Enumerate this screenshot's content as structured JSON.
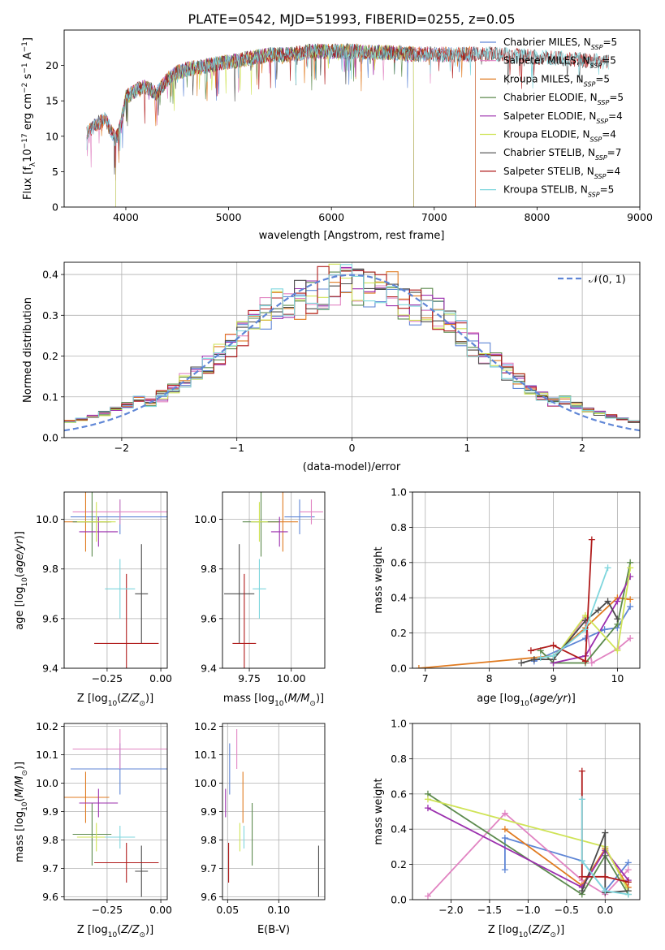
{
  "figure_title": "PLATE=0542, MJD=51993, FIBERID=0255, z=0.05",
  "colors": {
    "Chabrier MILES": "#5f86d6",
    "Salpeter MILES": "#e184c2",
    "Kroupa MILES": "#e07b21",
    "Chabrier ELODIE": "#5c8a4d",
    "Salpeter ELODIE": "#9b2fae",
    "Kroupa ELODIE": "#cfe356",
    "Chabrier STELIB": "#4a4a4a",
    "Salpeter STELIB": "#b01b1b",
    "Kroupa STELIB": "#7fd6dd"
  },
  "chart_data": [
    {
      "id": "spectrum",
      "type": "line",
      "xlabel": "wavelength [Angstrom, rest frame]",
      "ylabel": "Flux [f",
      "xlim": [
        3400,
        9000
      ],
      "ylim": [
        0,
        25
      ],
      "xticks": [
        "4000",
        "5000",
        "6000",
        "7000",
        "8000",
        "9000"
      ],
      "yticks": [
        "0",
        "5",
        "10",
        "15",
        "20"
      ],
      "grid": false,
      "legend_position": "upper right",
      "legend": [
        {
          "label": "Chabrier MILES, N",
          "n": "5"
        },
        {
          "label": "Salpeter MILES, N",
          "n": "5"
        },
        {
          "label": "Kroupa MILES, N",
          "n": "5"
        },
        {
          "label": "Chabrier ELODIE, N",
          "n": "5"
        },
        {
          "label": "Salpeter ELODIE, N",
          "n": "4"
        },
        {
          "label": "Kroupa ELODIE, N",
          "n": "4"
        },
        {
          "label": "Chabrier STELIB, N",
          "n": "7"
        },
        {
          "label": "Salpeter STELIB, N",
          "n": "4"
        },
        {
          "label": "Kroupa STELIB, N",
          "n": "5"
        }
      ],
      "continuum": {
        "x": [
          3620,
          3700,
          3800,
          3900,
          3950,
          4000,
          4100,
          4200,
          4300,
          4400,
          4500,
          4600,
          4800,
          5000,
          5200,
          5400,
          5600,
          5800,
          6000,
          6200,
          6400,
          6600,
          6800,
          7000,
          7200,
          7400,
          7600,
          7800,
          8000,
          8200,
          8400,
          8600,
          8700
        ],
        "y": [
          10.5,
          11.5,
          12.5,
          9.5,
          11.5,
          15.5,
          16.5,
          17.0,
          16.0,
          18.0,
          19.0,
          19.5,
          20.0,
          20.5,
          21.0,
          21.5,
          21.5,
          22.0,
          22.0,
          22.0,
          21.8,
          21.8,
          21.6,
          21.6,
          21.5,
          21.6,
          21.6,
          21.4,
          21.2,
          21.0,
          20.8,
          20.6,
          20.4
        ]
      },
      "ranges": {
        "Chabrier MILES": [
          3620,
          7400
        ],
        "Salpeter MILES": [
          3620,
          7400
        ],
        "Kroupa MILES": [
          3620,
          7400
        ],
        "Chabrier ELODIE": [
          3900,
          6800
        ],
        "Salpeter ELODIE": [
          3900,
          6800
        ],
        "Kroupa ELODIE": [
          3900,
          6800
        ],
        "Chabrier STELIB": [
          3620,
          8700
        ],
        "Salpeter STELIB": [
          3620,
          8700
        ],
        "Kroupa STELIB": [
          3620,
          8700
        ]
      }
    },
    {
      "id": "residuals",
      "type": "line",
      "xlabel": "(data-model)/error",
      "ylabel": "Normed distribution",
      "xlim": [
        -2.5,
        2.5
      ],
      "ylim": [
        0,
        0.43
      ],
      "xticks": [
        "−2",
        "−1",
        "0",
        "1",
        "2"
      ],
      "yticks": [
        "0.0",
        "0.1",
        "0.2",
        "0.3",
        "0.4"
      ],
      "grid": true,
      "legend_position": "upper right",
      "legend_label": "𝒩(0, 1)",
      "bin_width": 0.1,
      "bins_from": -2.5
    },
    {
      "id": "z-age",
      "type": "scatter",
      "xlabel": "Z [log",
      "ylabel": "age  [log",
      "xlim": [
        -0.45,
        0.03
      ],
      "ylim": [
        9.4,
        10.11
      ],
      "xticks": [
        "−0.25",
        "0.00"
      ],
      "yticks": [
        "9.4",
        "9.6",
        "9.8",
        "10.0"
      ],
      "grid": true,
      "points": [
        {
          "series": "Chabrier MILES",
          "x": -0.19,
          "xerr": 0.23,
          "y": 10.01,
          "yerr": 0.07
        },
        {
          "series": "Salpeter MILES",
          "x": -0.19,
          "xerr": 0.22,
          "y": 10.03,
          "yerr": 0.05
        },
        {
          "series": "Kroupa MILES",
          "x": -0.35,
          "xerr": 0.11,
          "y": 9.99,
          "yerr": 0.12
        },
        {
          "series": "Chabrier ELODIE",
          "x": -0.32,
          "xerr": 0.09,
          "y": 9.99,
          "yerr": 0.14
        },
        {
          "series": "Salpeter ELODIE",
          "x": -0.29,
          "xerr": 0.09,
          "y": 9.95,
          "yerr": 0.06
        },
        {
          "series": "Kroupa ELODIE",
          "x": -0.3,
          "xerr": 0.09,
          "y": 9.99,
          "yerr": 0.08
        },
        {
          "series": "Chabrier STELIB",
          "x": -0.09,
          "xerr": 0.03,
          "y": 9.7,
          "yerr": 0.2
        },
        {
          "series": "Salpeter STELIB",
          "x": -0.16,
          "xerr": 0.15,
          "y": 9.5,
          "yerr": 0.28
        },
        {
          "series": "Kroupa STELIB",
          "x": -0.19,
          "xerr": 0.07,
          "y": 9.72,
          "yerr": 0.12
        }
      ]
    },
    {
      "id": "mass-age",
      "type": "scatter",
      "xlabel": "mass [log",
      "xlim": [
        9.59,
        10.2
      ],
      "ylim": [
        9.4,
        10.11
      ],
      "xticks": [
        "9.75",
        "10.00"
      ],
      "yticks": [
        "9.4",
        "9.6",
        "9.8",
        "10.0"
      ],
      "grid": true,
      "points": [
        {
          "series": "Chabrier MILES",
          "x": 10.05,
          "xerr": 0.09,
          "y": 10.01,
          "yerr": 0.07
        },
        {
          "series": "Salpeter MILES",
          "x": 10.12,
          "xerr": 0.07,
          "y": 10.03,
          "yerr": 0.05
        },
        {
          "series": "Kroupa MILES",
          "x": 9.95,
          "xerr": 0.09,
          "y": 9.99,
          "yerr": 0.12
        },
        {
          "series": "Chabrier ELODIE",
          "x": 9.82,
          "xerr": 0.11,
          "y": 9.99,
          "yerr": 0.14
        },
        {
          "series": "Salpeter ELODIE",
          "x": 9.93,
          "xerr": 0.05,
          "y": 9.95,
          "yerr": 0.06
        },
        {
          "series": "Kroupa ELODIE",
          "x": 9.81,
          "xerr": 0.05,
          "y": 9.99,
          "yerr": 0.08
        },
        {
          "series": "Chabrier STELIB",
          "x": 9.69,
          "xerr": 0.09,
          "y": 9.7,
          "yerr": 0.2
        },
        {
          "series": "Salpeter STELIB",
          "x": 9.72,
          "xerr": 0.07,
          "y": 9.5,
          "yerr": 0.28
        },
        {
          "series": "Kroupa STELIB",
          "x": 9.81,
          "xerr": 0.04,
          "y": 9.72,
          "yerr": 0.12
        }
      ]
    },
    {
      "id": "age-weight",
      "type": "line",
      "xlabel": "age  [log",
      "ylabel": "mass weight",
      "xlim": [
        6.8,
        10.35
      ],
      "ylim": [
        0,
        1.0
      ],
      "xticks": [
        "7",
        "8",
        "9",
        "10"
      ],
      "yticks": [
        "0.0",
        "0.2",
        "0.4",
        "0.6",
        "0.8",
        "1.0"
      ],
      "grid": true,
      "series": [
        {
          "name": "Chabrier MILES",
          "x": [
            8.7,
            9.5,
            9.8,
            10.0,
            10.2
          ],
          "y": [
            0.04,
            0.17,
            0.22,
            0.23,
            0.35
          ]
        },
        {
          "name": "Salpeter MILES",
          "x": [
            9.0,
            9.5,
            9.6,
            10.0,
            10.2
          ],
          "y": [
            0.05,
            0.29,
            0.03,
            0.11,
            0.17
          ]
        },
        {
          "name": "Kroupa MILES",
          "x": [
            6.9,
            9.0,
            9.5,
            10.0,
            10.2
          ],
          "y": [
            0.0,
            0.07,
            0.23,
            0.4,
            0.39
          ]
        },
        {
          "name": "Chabrier ELODIE",
          "x": [
            8.8,
            9.0,
            9.5,
            10.0,
            10.2
          ],
          "y": [
            0.1,
            0.03,
            0.03,
            0.25,
            0.6
          ]
        },
        {
          "name": "Salpeter ELODIE",
          "x": [
            9.0,
            9.5,
            10.0,
            10.2
          ],
          "y": [
            0.03,
            0.07,
            0.38,
            0.52
          ]
        },
        {
          "name": "Kroupa ELODIE",
          "x": [
            9.0,
            9.5,
            10.0,
            10.2
          ],
          "y": [
            0.05,
            0.3,
            0.1,
            0.57
          ]
        },
        {
          "name": "Chabrier STELIB",
          "x": [
            8.5,
            8.7,
            9.0,
            9.5,
            9.7,
            9.85,
            10.0
          ],
          "y": [
            0.03,
            0.05,
            0.05,
            0.27,
            0.33,
            0.38,
            0.28
          ]
        },
        {
          "name": "Salpeter STELIB",
          "x": [
            8.65,
            9.0,
            9.5,
            9.6
          ],
          "y": [
            0.1,
            0.13,
            0.04,
            0.73
          ]
        },
        {
          "name": "Kroupa STELIB",
          "x": [
            8.8,
            9.0,
            9.5,
            9.85
          ],
          "y": [
            0.06,
            0.07,
            0.22,
            0.57
          ]
        }
      ]
    },
    {
      "id": "z-mass",
      "type": "scatter",
      "xlabel": "Z [log",
      "ylabel": "mass [log",
      "xlim": [
        -0.45,
        0.03
      ],
      "ylim": [
        9.59,
        10.21
      ],
      "xticks": [
        "−0.25",
        "0.00"
      ],
      "yticks": [
        "9.6",
        "9.7",
        "9.8",
        "9.9",
        "10.0",
        "10.1",
        "10.2"
      ],
      "grid": true,
      "points": [
        {
          "series": "Chabrier MILES",
          "x": -0.19,
          "xerr": 0.23,
          "y": 10.05,
          "yerr": 0.09
        },
        {
          "series": "Salpeter MILES",
          "x": -0.19,
          "xerr": 0.22,
          "y": 10.12,
          "yerr": 0.07
        },
        {
          "series": "Kroupa MILES",
          "x": -0.35,
          "xerr": 0.11,
          "y": 9.95,
          "yerr": 0.09
        },
        {
          "series": "Chabrier ELODIE",
          "x": -0.32,
          "xerr": 0.09,
          "y": 9.82,
          "yerr": 0.11
        },
        {
          "series": "Salpeter ELODIE",
          "x": -0.29,
          "xerr": 0.09,
          "y": 9.93,
          "yerr": 0.05
        },
        {
          "series": "Kroupa ELODIE",
          "x": -0.3,
          "xerr": 0.09,
          "y": 9.81,
          "yerr": 0.05
        },
        {
          "series": "Chabrier STELIB",
          "x": -0.09,
          "xerr": 0.03,
          "y": 9.69,
          "yerr": 0.09
        },
        {
          "series": "Salpeter STELIB",
          "x": -0.16,
          "xerr": 0.15,
          "y": 9.72,
          "yerr": 0.07
        },
        {
          "series": "Kroupa STELIB",
          "x": -0.19,
          "xerr": 0.07,
          "y": 9.81,
          "yerr": 0.04
        }
      ]
    },
    {
      "id": "ebv-mass",
      "type": "scatter",
      "xlabel": "E(B-V)",
      "xlim": [
        0.045,
        0.145
      ],
      "ylim": [
        9.59,
        10.21
      ],
      "xticks": [
        "0.05",
        "0.10"
      ],
      "yticks": [
        "9.6",
        "9.7",
        "9.8",
        "9.9",
        "10.0",
        "10.1",
        "10.2"
      ],
      "grid": true,
      "points": [
        {
          "series": "Chabrier MILES",
          "x": 0.052,
          "xerr": 0.0,
          "y": 10.05,
          "yerr": 0.09
        },
        {
          "series": "Salpeter MILES",
          "x": 0.059,
          "xerr": 0.0,
          "y": 10.12,
          "yerr": 0.07
        },
        {
          "series": "Kroupa MILES",
          "x": 0.065,
          "xerr": 0.0,
          "y": 9.95,
          "yerr": 0.09
        },
        {
          "series": "Chabrier ELODIE",
          "x": 0.074,
          "xerr": 0.0,
          "y": 9.82,
          "yerr": 0.11
        },
        {
          "series": "Salpeter ELODIE",
          "x": 0.048,
          "xerr": 0.0,
          "y": 9.93,
          "yerr": 0.05
        },
        {
          "series": "Kroupa ELODIE",
          "x": 0.062,
          "xerr": 0.0,
          "y": 9.81,
          "yerr": 0.05
        },
        {
          "series": "Chabrier STELIB",
          "x": 0.139,
          "xerr": 0.0,
          "y": 9.69,
          "yerr": 0.09
        },
        {
          "series": "Salpeter STELIB",
          "x": 0.051,
          "xerr": 0.0,
          "y": 9.72,
          "yerr": 0.07
        },
        {
          "series": "Kroupa STELIB",
          "x": 0.066,
          "xerr": 0.0,
          "y": 9.81,
          "yerr": 0.04
        }
      ]
    },
    {
      "id": "z-weight",
      "type": "line",
      "xlabel": "Z [log",
      "ylabel": "mass weight",
      "xlim": [
        -2.5,
        0.45
      ],
      "ylim": [
        0,
        1.0
      ],
      "xticks": [
        "−2.0",
        "−1.5",
        "−1.0",
        "−0.5",
        "0.0"
      ],
      "yticks": [
        "0.0",
        "0.2",
        "0.4",
        "0.6",
        "0.8",
        "1.0"
      ],
      "grid": true,
      "series": [
        {
          "name": "Chabrier MILES",
          "x": [
            -1.3,
            -1.3,
            -0.3,
            0.0,
            0.3
          ],
          "y": [
            0.17,
            0.35,
            0.22,
            0.05,
            0.21
          ]
        },
        {
          "name": "Salpeter MILES",
          "x": [
            -2.3,
            -1.3,
            -0.3,
            0.0,
            0.3
          ],
          "y": [
            0.02,
            0.49,
            0.11,
            0.03,
            0.17
          ]
        },
        {
          "name": "Kroupa MILES",
          "x": [
            -1.3,
            -0.3,
            0.0,
            0.3
          ],
          "y": [
            0.4,
            0.08,
            0.29,
            0.07
          ]
        },
        {
          "name": "Chabrier ELODIE",
          "x": [
            -2.3,
            -0.3,
            0.0,
            0.3
          ],
          "y": [
            0.6,
            0.03,
            0.25,
            0.03
          ]
        },
        {
          "name": "Salpeter ELODIE",
          "x": [
            -2.3,
            -0.3,
            0.0,
            0.3
          ],
          "y": [
            0.52,
            0.07,
            0.28,
            0.11
          ]
        },
        {
          "name": "Kroupa ELODIE",
          "x": [
            -2.3,
            0.0,
            0.3
          ],
          "y": [
            0.57,
            0.3,
            0.05
          ]
        },
        {
          "name": "Chabrier STELIB",
          "x": [
            -0.3,
            0.0,
            0.0,
            0.3
          ],
          "y": [
            0.05,
            0.38,
            0.04,
            0.05
          ]
        },
        {
          "name": "Salpeter STELIB",
          "x": [
            -0.3,
            -0.3,
            0.0,
            0.3
          ],
          "y": [
            0.73,
            0.13,
            0.13,
            0.1
          ]
        },
        {
          "name": "Kroupa STELIB",
          "x": [
            -0.3,
            -0.3,
            0.0,
            0.3
          ],
          "y": [
            0.57,
            0.22,
            0.05,
            0.03
          ]
        }
      ]
    }
  ]
}
